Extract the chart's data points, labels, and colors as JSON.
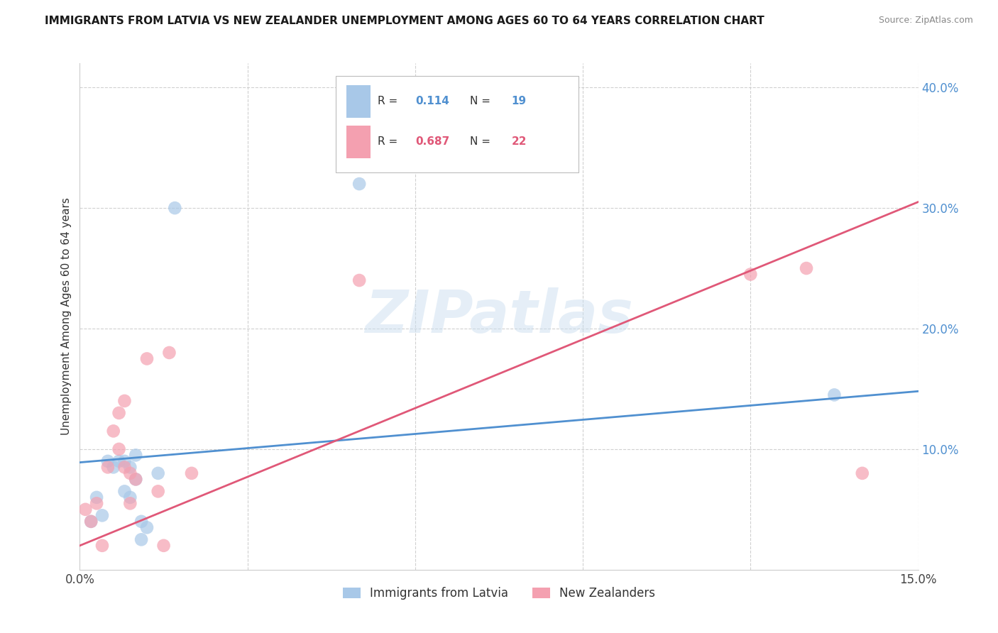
{
  "title": "IMMIGRANTS FROM LATVIA VS NEW ZEALANDER UNEMPLOYMENT AMONG AGES 60 TO 64 YEARS CORRELATION CHART",
  "source": "Source: ZipAtlas.com",
  "ylabel": "Unemployment Among Ages 60 to 64 years",
  "xlim": [
    0.0,
    0.15
  ],
  "ylim": [
    0.0,
    0.42
  ],
  "xticks": [
    0.0,
    0.03,
    0.06,
    0.09,
    0.12,
    0.15
  ],
  "yticks_right": [
    0.1,
    0.2,
    0.3,
    0.4
  ],
  "ytick_labels_right": [
    "10.0%",
    "20.0%",
    "30.0%",
    "40.0%"
  ],
  "grid_color": "#d0d0d0",
  "background_color": "#ffffff",
  "watermark_text": "ZIPatlas",
  "legend_r1_val": "0.114",
  "legend_n1_val": "19",
  "legend_r2_val": "0.687",
  "legend_n2_val": "22",
  "blue_color": "#a8c8e8",
  "pink_color": "#f4a0b0",
  "blue_line_color": "#5090d0",
  "pink_line_color": "#e05878",
  "legend_label1": "Immigrants from Latvia",
  "legend_label2": "New Zealanders",
  "blue_scatter_x": [
    0.002,
    0.003,
    0.004,
    0.005,
    0.006,
    0.007,
    0.008,
    0.008,
    0.009,
    0.009,
    0.01,
    0.01,
    0.011,
    0.011,
    0.012,
    0.014,
    0.017,
    0.05,
    0.135
  ],
  "blue_scatter_y": [
    0.04,
    0.06,
    0.045,
    0.09,
    0.085,
    0.09,
    0.065,
    0.09,
    0.06,
    0.085,
    0.075,
    0.095,
    0.025,
    0.04,
    0.035,
    0.08,
    0.3,
    0.32,
    0.145
  ],
  "pink_scatter_x": [
    0.001,
    0.002,
    0.003,
    0.004,
    0.005,
    0.006,
    0.007,
    0.007,
    0.008,
    0.008,
    0.009,
    0.009,
    0.01,
    0.012,
    0.014,
    0.015,
    0.016,
    0.02,
    0.05,
    0.12,
    0.13,
    0.14
  ],
  "pink_scatter_y": [
    0.05,
    0.04,
    0.055,
    0.02,
    0.085,
    0.115,
    0.1,
    0.13,
    0.085,
    0.14,
    0.08,
    0.055,
    0.075,
    0.175,
    0.065,
    0.02,
    0.18,
    0.08,
    0.24,
    0.245,
    0.25,
    0.08
  ],
  "blue_line_x": [
    0.0,
    0.15
  ],
  "blue_line_y": [
    0.089,
    0.148
  ],
  "pink_line_x": [
    0.0,
    0.15
  ],
  "pink_line_y": [
    0.02,
    0.305
  ]
}
